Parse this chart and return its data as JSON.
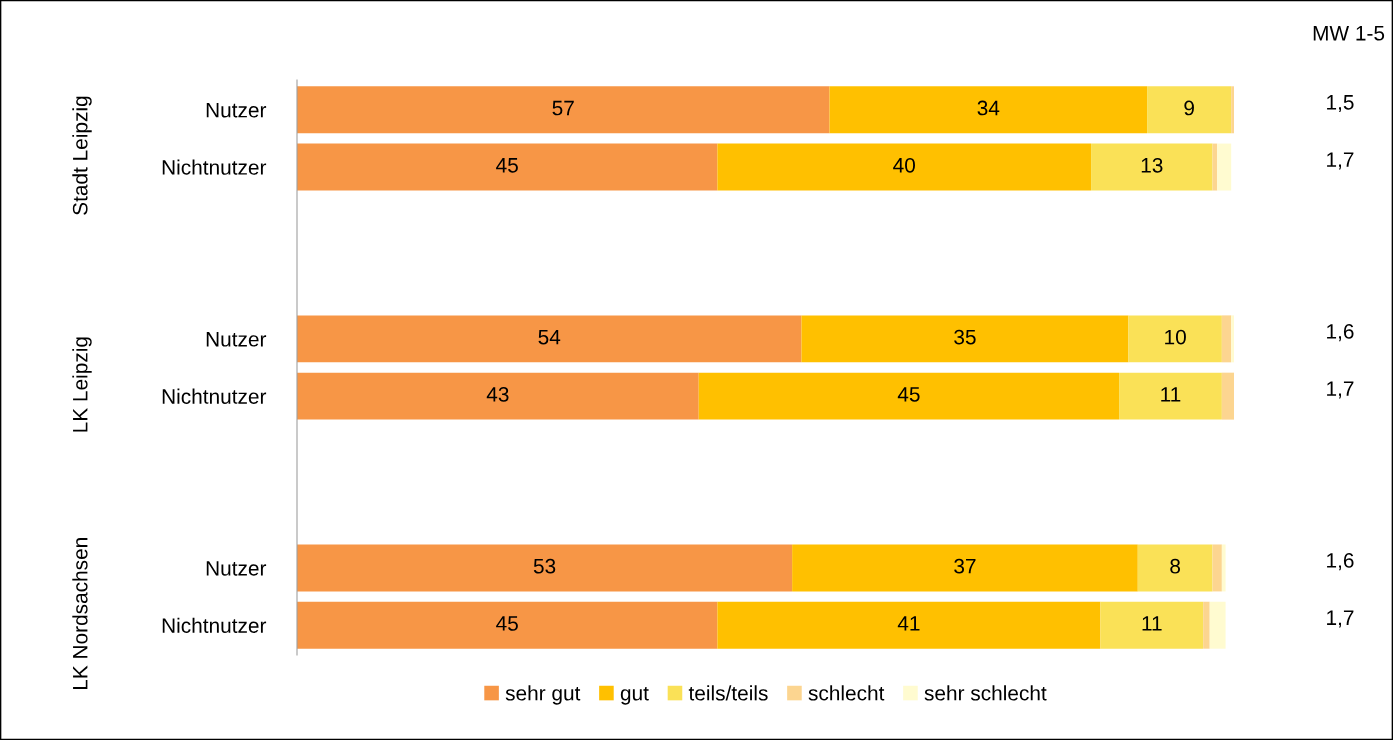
{
  "chart_data": {
    "type": "bar",
    "orientation": "horizontal",
    "stacked": true,
    "categories": [
      "Nutzer",
      "Nichtnutzer",
      null,
      null,
      "Nutzer",
      "Nichtnutzer",
      null,
      null,
      "Nutzer",
      "Nichtnutzer"
    ],
    "series": [
      {
        "name": "sehr gut",
        "color": "#f79646",
        "values": [
          57,
          45,
          null,
          null,
          54,
          43,
          null,
          null,
          53,
          45
        ],
        "value_labels": [
          "57",
          "45",
          null,
          null,
          "54",
          "43",
          null,
          null,
          "53",
          "45"
        ]
      },
      {
        "name": "gut",
        "color": "#ffc000",
        "values": [
          34,
          40,
          null,
          null,
          35,
          45,
          null,
          null,
          37,
          41
        ],
        "value_labels": [
          "34",
          "40",
          null,
          null,
          "35",
          "45",
          null,
          null,
          "37",
          "41"
        ]
      },
      {
        "name": "teils/teils",
        "color": "#fae157",
        "values": [
          9,
          13,
          null,
          null,
          10,
          11,
          null,
          null,
          8,
          11
        ],
        "value_labels": [
          "9",
          "13",
          null,
          null,
          "10",
          "11",
          null,
          null,
          "8",
          "11"
        ]
      },
      {
        "name": "schlecht",
        "color": "#fcd590",
        "values": [
          0.3,
          0.5,
          null,
          null,
          1,
          1.3,
          null,
          null,
          1,
          0.7
        ]
      },
      {
        "name": "sehr schlecht",
        "color": "#fffbd0",
        "values": [
          null,
          1.5,
          null,
          null,
          0.3,
          null,
          null,
          null,
          0.4,
          1.7
        ]
      }
    ],
    "annotations": [
      "Stadt Leipzig",
      "LK Leipzig",
      "LK Nordsachsen",
      "MW 1-5",
      "1,5",
      "1,7",
      "1,6",
      "1,7",
      "1,6",
      "1,7"
    ],
    "legend": "bottom",
    "grid": false
  }
}
